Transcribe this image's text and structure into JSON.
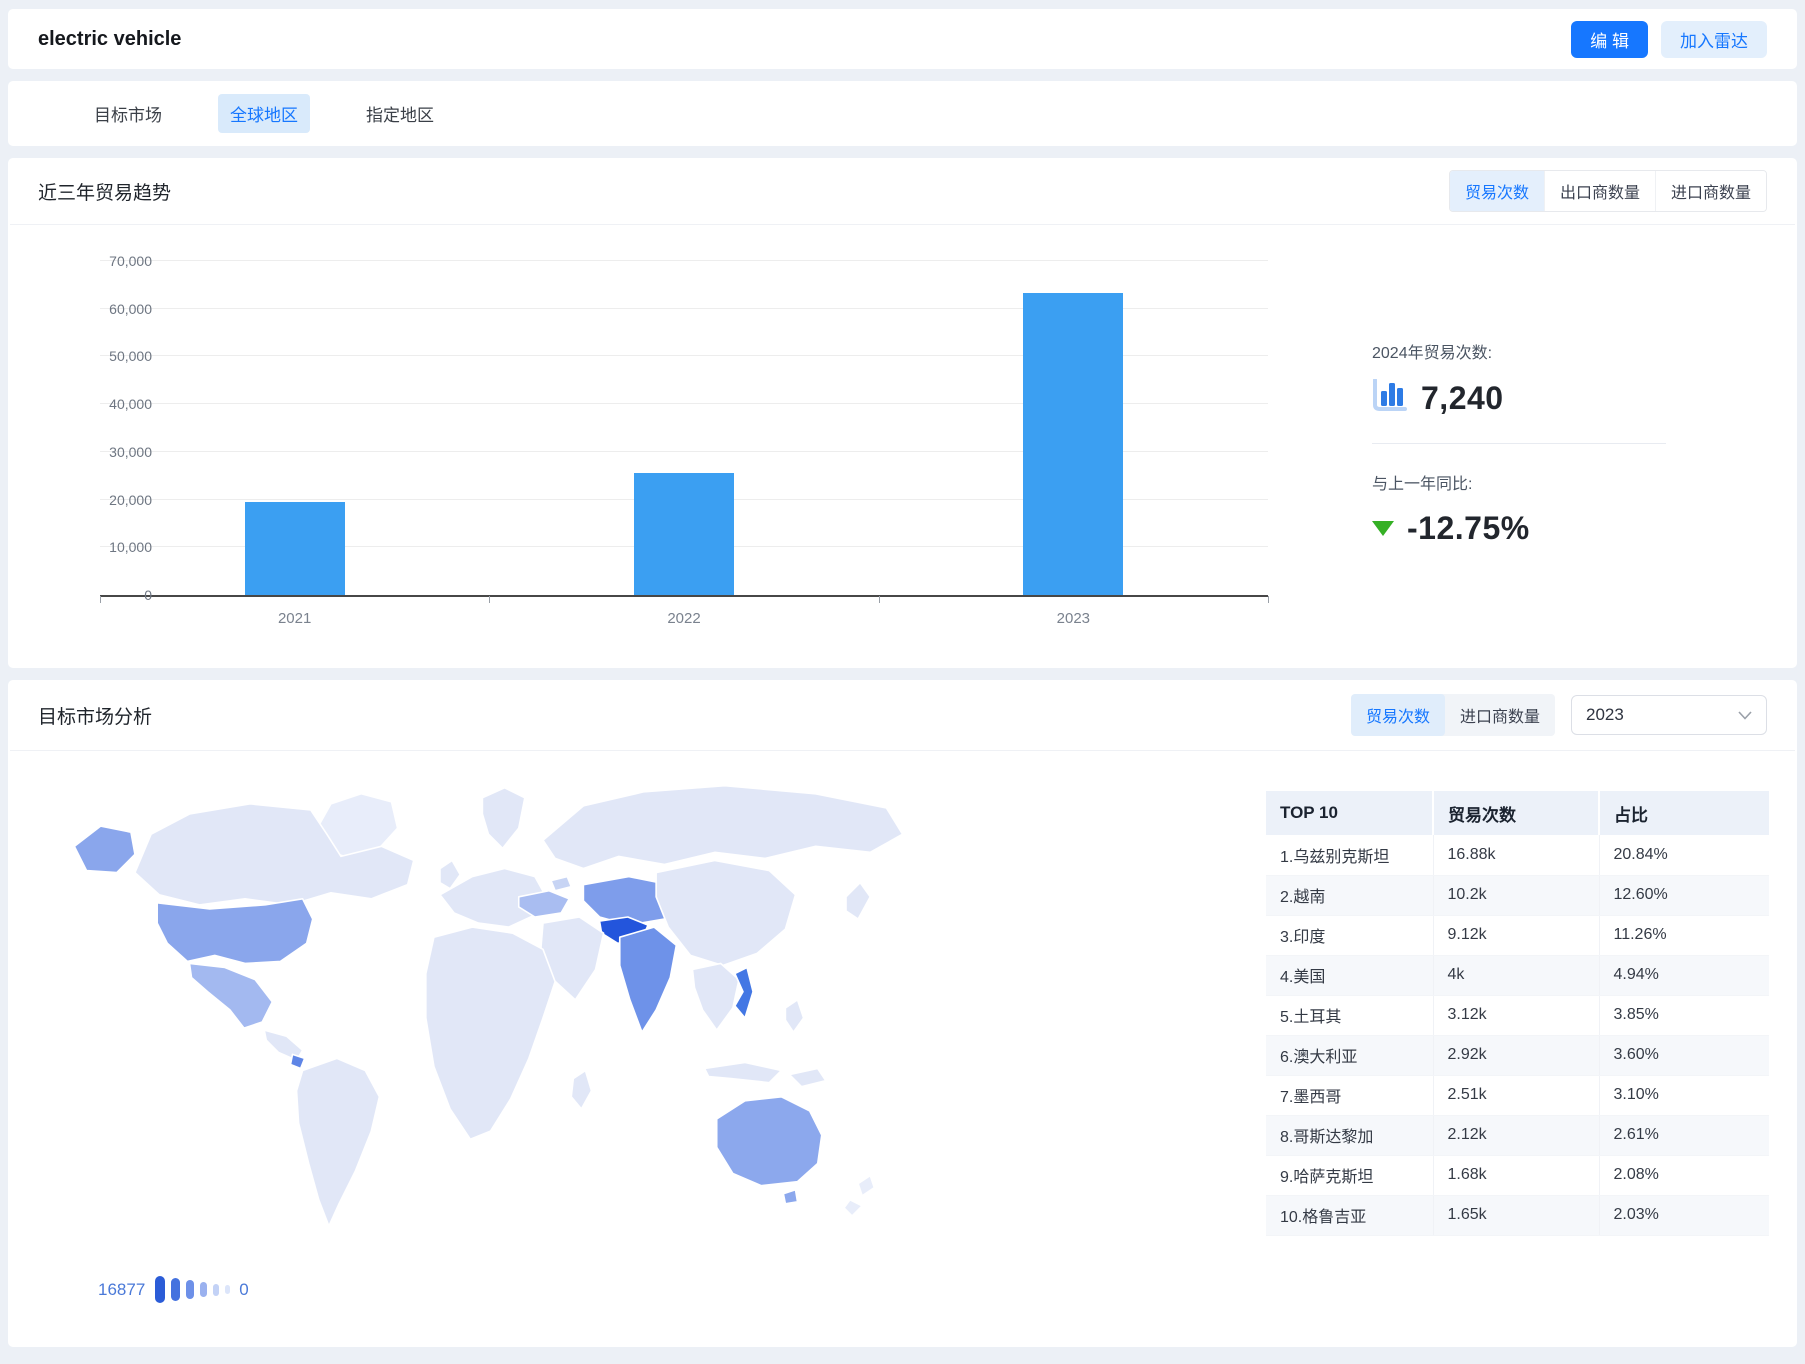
{
  "header": {
    "title": "electric vehicle",
    "edit_button": "编 辑",
    "radar_button": "加入雷达"
  },
  "tabs": [
    {
      "label": "目标市场",
      "active": false
    },
    {
      "label": "全球地区",
      "active": true
    },
    {
      "label": "指定地区",
      "active": false
    }
  ],
  "trend_section": {
    "title": "近三年贸易趋势",
    "toggles": [
      "贸易次数",
      "出口商数量",
      "进口商数量"
    ],
    "active_toggle": "贸易次数",
    "stats": {
      "count_label": "2024年贸易次数:",
      "count_value": "7,240",
      "yoy_label": "与上一年同比:",
      "yoy_value": "-12.75%"
    }
  },
  "chart_data": {
    "type": "bar",
    "title": "近三年贸易趋势",
    "series_name": "贸易次数",
    "categories": [
      "2021",
      "2022",
      "2023"
    ],
    "values": [
      19500,
      25500,
      63400
    ],
    "xlabel": "",
    "ylabel": "",
    "ylim": [
      0,
      70000
    ],
    "ytick_step": 10000,
    "grid": true,
    "legend_position": "none"
  },
  "market_section": {
    "title": "目标市场分析",
    "toggles": [
      "贸易次数",
      "进口商数量"
    ],
    "active_toggle": "贸易次数",
    "year_dropdown": "2023",
    "legend": {
      "max": "16877",
      "min": "0"
    },
    "table": {
      "headers": [
        "TOP 10",
        "贸易次数",
        "占比"
      ],
      "rows": [
        [
          "1.乌兹别克斯坦",
          "16.88k",
          "20.84%"
        ],
        [
          "2.越南",
          "10.2k",
          "12.60%"
        ],
        [
          "3.印度",
          "9.12k",
          "11.26%"
        ],
        [
          "4.美国",
          "4k",
          "4.94%"
        ],
        [
          "5.土耳其",
          "3.12k",
          "3.85%"
        ],
        [
          "6.澳大利亚",
          "2.92k",
          "3.60%"
        ],
        [
          "7.墨西哥",
          "2.51k",
          "3.10%"
        ],
        [
          "8.哥斯达黎加",
          "2.12k",
          "2.61%"
        ],
        [
          "9.哈萨克斯坦",
          "1.68k",
          "2.08%"
        ],
        [
          "10.格鲁吉亚",
          "1.65k",
          "2.03%"
        ]
      ]
    }
  },
  "colors": {
    "accent": "#1677FF",
    "bar_blue": "#3B9FF2",
    "yoy_down_green": "#35B025",
    "map_scale": [
      "#2B5CD7",
      "#4472DF",
      "#6D90E8",
      "#9AB1EF",
      "#C3D2F6",
      "#DCE5FA"
    ],
    "map_base_land": "#E1E7F7"
  }
}
